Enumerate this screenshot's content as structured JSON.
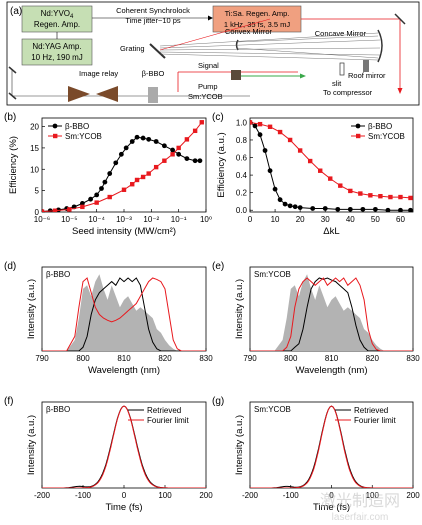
{
  "panel_a": {
    "label": "(a)",
    "boxes": {
      "yvo4": [
        "Nd:YVO",
        "Regen. Amp."
      ],
      "yag": [
        "Nd:YAG Amp.",
        "10 Hz, 190 mJ"
      ],
      "tisa": [
        "Ti:Sa. Regen. Amp.",
        "1 kHz, 35 fs, 3.5 mJ"
      ]
    },
    "yvo4_subscript": "4",
    "sync_lines": [
      "Coherent Synchrolock",
      "Time jitter~10 ps"
    ],
    "labels": {
      "concave": "Concave Mirror",
      "convex": "Convex Mirror",
      "grating": "Grating",
      "image_relay": "Image relay",
      "bbo": "β-BBO",
      "signal": "Signal",
      "pump": "Pump",
      "sm": "Sm:YCOB",
      "slit": "slit",
      "roof": "Roof mirror",
      "compressor": "To compressor"
    }
  },
  "colors": {
    "bbo": "#000000",
    "sm": "#e8191e",
    "fill": "#b3b3b3",
    "box_green": "#c6dfb4",
    "box_orange": "#f0a080",
    "pump_green": "#3aa84a"
  },
  "chart_data": [
    {
      "id": "b",
      "type": "line",
      "panel_label": "(b)",
      "xlabel": "Seed intensity (MW/cm²)",
      "ylabel": "Efficiency (%)",
      "xscale": "log",
      "xlim": [
        1e-06,
        1
      ],
      "ylim": [
        0,
        22
      ],
      "xticks": [
        "10⁻⁶",
        "10⁻⁵",
        "10⁻⁴",
        "10⁻³",
        "10⁻²",
        "10⁻¹",
        "10⁰"
      ],
      "yticks": [
        0,
        5,
        10,
        15,
        20
      ],
      "legend": [
        "β-BBO",
        "Sm:YCOB"
      ],
      "series": [
        {
          "name": "β-BBO",
          "x": [
            1e-06,
            2e-06,
            4e-06,
            8e-06,
            1.5e-05,
            3e-05,
            6e-05,
            0.0001,
            0.00015,
            0.0002,
            0.0003,
            0.0005,
            0.0008,
            0.0012,
            0.002,
            0.003,
            0.005,
            0.008,
            0.015,
            0.03,
            0.06,
            0.1,
            0.2,
            0.4,
            0.6
          ],
          "y": [
            0.1,
            0.3,
            0.5,
            0.8,
            1.2,
            2,
            3,
            4,
            5.5,
            7,
            9,
            11.5,
            13.5,
            15,
            16.5,
            17.5,
            17.3,
            17,
            16.5,
            15.5,
            14.5,
            13.5,
            12.5,
            12,
            12
          ]
        },
        {
          "name": "Sm:YCOB",
          "x": [
            1e-06,
            3e-06,
            1e-05,
            3e-05,
            0.0001,
            0.0003,
            0.001,
            0.002,
            0.003,
            0.005,
            0.008,
            0.015,
            0.03,
            0.06,
            0.1,
            0.2,
            0.4,
            0.7
          ],
          "y": [
            0.1,
            0.3,
            0.6,
            1.2,
            2.2,
            3.5,
            5.2,
            6.5,
            7.5,
            8.2,
            9,
            10.5,
            12,
            13.5,
            15,
            17,
            19,
            21
          ]
        }
      ]
    },
    {
      "id": "c",
      "type": "line",
      "panel_label": "(c)",
      "xlabel": "ΔkL",
      "ylabel": "Efficiency (a.u.)",
      "xlim": [
        0,
        65
      ],
      "ylim": [
        -0.02,
        1.05
      ],
      "xticks": [
        0,
        10,
        20,
        30,
        40,
        50,
        60
      ],
      "yticks": [
        "0.0",
        "0.2",
        "0.4",
        "0.6",
        "0.8",
        "1.0"
      ],
      "legend": [
        "β-BBO",
        "Sm:YCOB"
      ],
      "series": [
        {
          "name": "β-BBO",
          "x": [
            0,
            2,
            4,
            6,
            8,
            10,
            12,
            14,
            16,
            18,
            20,
            25,
            30,
            35,
            40,
            45,
            50,
            55,
            60,
            64
          ],
          "y": [
            1.0,
            0.96,
            0.86,
            0.68,
            0.45,
            0.24,
            0.12,
            0.07,
            0.05,
            0.04,
            0.03,
            0.02,
            0.02,
            0.01,
            0.01,
            0.01,
            0.01,
            0.0,
            0.0,
            0.0
          ]
        },
        {
          "name": "Sm:YCOB",
          "x": [
            0,
            4,
            8,
            12,
            16,
            20,
            24,
            28,
            32,
            36,
            40,
            44,
            48,
            52,
            56,
            60,
            64
          ],
          "y": [
            1.0,
            0.98,
            0.95,
            0.89,
            0.8,
            0.68,
            0.56,
            0.45,
            0.36,
            0.28,
            0.22,
            0.19,
            0.17,
            0.16,
            0.15,
            0.15,
            0.14
          ]
        }
      ]
    },
    {
      "id": "d",
      "type": "area",
      "panel_label": "(d)",
      "inset_label": "β-BBO",
      "xlabel": "Wavelength (nm)",
      "ylabel": "Intensity (a.u.)",
      "xlim": [
        790,
        830
      ],
      "ylim": [
        0,
        1.15
      ],
      "xticks": [
        790,
        800,
        810,
        820,
        830
      ],
      "x": [
        790,
        796,
        798,
        799,
        800,
        801,
        802,
        803,
        804,
        805,
        806,
        807,
        808,
        809,
        810,
        811,
        812,
        813,
        814,
        815,
        816,
        817,
        818,
        819,
        820,
        821,
        822,
        823,
        824,
        826,
        830
      ],
      "series": [
        {
          "name": "filled",
          "y": [
            0.0,
            0.0,
            0.15,
            0.45,
            0.85,
            0.9,
            0.75,
            0.95,
            1.05,
            0.85,
            0.7,
            0.9,
            0.75,
            0.6,
            0.7,
            0.75,
            0.65,
            0.55,
            0.6,
            0.55,
            0.5,
            0.45,
            0.3,
            0.25,
            0.15,
            0.08,
            0.03,
            0.0,
            0.0,
            0.0,
            0.0
          ]
        },
        {
          "name": "black",
          "y": [
            0.0,
            0.0,
            0.0,
            0.0,
            0.05,
            0.2,
            0.5,
            0.7,
            0.8,
            0.85,
            0.9,
            0.95,
            0.9,
            1.0,
            0.95,
            1.0,
            0.95,
            1.0,
            0.9,
            0.6,
            0.3,
            0.12,
            0.03,
            0.0,
            0.0,
            0.0,
            0.0,
            0.0,
            0.0,
            0.0,
            0.0
          ]
        },
        {
          "name": "red",
          "y": [
            0.0,
            0.0,
            0.2,
            0.6,
            0.95,
            1.0,
            0.8,
            0.6,
            0.5,
            0.45,
            0.42,
            0.4,
            0.42,
            0.45,
            0.5,
            0.55,
            0.6,
            0.65,
            0.75,
            0.85,
            0.95,
            1.0,
            0.98,
            0.95,
            0.85,
            0.5,
            0.15,
            0.03,
            0.0,
            0.0,
            0.0
          ]
        }
      ]
    },
    {
      "id": "e",
      "type": "area",
      "panel_label": "(e)",
      "inset_label": "Sm:YCOB",
      "xlabel": "Wavelength (nm)",
      "ylabel": "Intensity (a.u.)",
      "xlim": [
        790,
        830
      ],
      "ylim": [
        0,
        1.15
      ],
      "xticks": [
        790,
        800,
        810,
        820,
        830
      ],
      "x": [
        790,
        796,
        798,
        799,
        800,
        801,
        802,
        803,
        804,
        805,
        806,
        807,
        808,
        809,
        810,
        811,
        812,
        813,
        814,
        815,
        816,
        817,
        818,
        819,
        820,
        821,
        822,
        823,
        824,
        826,
        830
      ],
      "series": [
        {
          "name": "filled",
          "y": [
            0.0,
            0.0,
            0.15,
            0.45,
            0.85,
            0.9,
            0.75,
            0.95,
            1.05,
            0.85,
            0.7,
            0.9,
            0.75,
            0.6,
            0.7,
            0.75,
            0.65,
            0.55,
            0.6,
            0.55,
            0.5,
            0.45,
            0.3,
            0.25,
            0.15,
            0.08,
            0.03,
            0.0,
            0.0,
            0.0,
            0.0
          ]
        },
        {
          "name": "black",
          "y": [
            0.0,
            0.0,
            0.0,
            0.0,
            0.0,
            0.05,
            0.1,
            0.3,
            0.6,
            0.85,
            0.95,
            1.0,
            0.98,
            1.0,
            0.97,
            0.95,
            0.9,
            0.85,
            0.8,
            0.6,
            0.35,
            0.15,
            0.05,
            0.0,
            0.0,
            0.0,
            0.0,
            0.0,
            0.0,
            0.0,
            0.0
          ]
        },
        {
          "name": "red",
          "y": [
            0.0,
            0.0,
            0.0,
            0.05,
            0.2,
            0.6,
            0.85,
            0.95,
            1.0,
            0.95,
            0.9,
            0.95,
            1.0,
            0.9,
            0.95,
            1.0,
            0.95,
            1.0,
            0.9,
            0.95,
            1.0,
            0.9,
            0.7,
            0.3,
            0.1,
            0.02,
            0.0,
            0.0,
            0.0,
            0.0,
            0.0
          ]
        }
      ]
    },
    {
      "id": "f",
      "type": "line",
      "panel_label": "(f)",
      "inset_label": "β-BBO",
      "xlabel": "Time (fs)",
      "ylabel": "Intensity (a.u.)",
      "xlim": [
        -200,
        200
      ],
      "ylim": [
        0,
        1.05
      ],
      "xticks": [
        -200,
        -100,
        0,
        100,
        200
      ],
      "legend": [
        "Retrieved",
        "Fourier limit"
      ],
      "series": [
        {
          "name": "Retrieved",
          "fwhm_fs": 66,
          "center_fs": 0
        },
        {
          "name": "Fourier limit",
          "fwhm_fs": 64,
          "center_fs": 0
        }
      ]
    },
    {
      "id": "g",
      "type": "line",
      "panel_label": "(g)",
      "inset_label": "Sm:YCOB",
      "xlabel": "Time (fs)",
      "ylabel": "Intensity (a.u.)",
      "xlim": [
        -200,
        200
      ],
      "ylim": [
        0,
        1.05
      ],
      "xticks": [
        -200,
        -100,
        0,
        100,
        200
      ],
      "legend": [
        "Retrieved",
        "Fourier limit"
      ],
      "series": [
        {
          "name": "Retrieved",
          "fwhm_fs": 62,
          "center_fs": 0
        },
        {
          "name": "Fourier limit",
          "fwhm_fs": 60,
          "center_fs": 0
        }
      ]
    }
  ],
  "watermark": [
    "激光制造网",
    "laserfair.com"
  ]
}
